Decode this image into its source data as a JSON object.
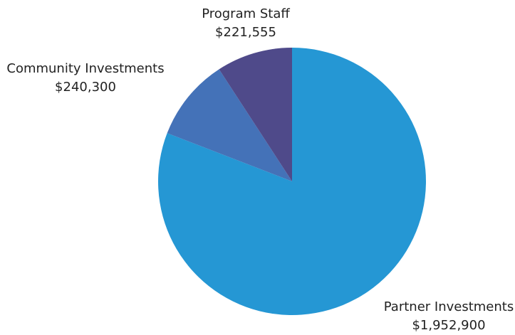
{
  "chart_data": {
    "type": "pie",
    "categories": [
      "Partner Investments",
      "Community Investments",
      "Program Staff"
    ],
    "values": [
      1952900,
      240300,
      221555
    ],
    "value_labels": [
      "$1,952,900",
      "$240,300",
      "$221,555"
    ],
    "colors": [
      "#2597d4",
      "#4472b8",
      "#4f4a8a"
    ]
  }
}
